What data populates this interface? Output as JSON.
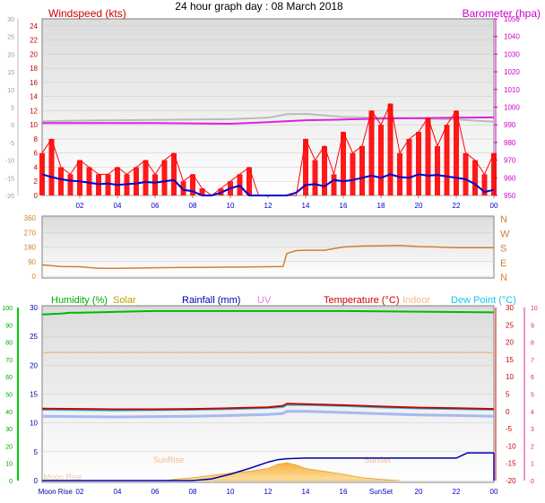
{
  "title": "24 hour graph day : 08 March 2018",
  "colors": {
    "wind": "#ff0000",
    "wind_avg": "#0000cc",
    "baro": "#e020e0",
    "baro_axis": "#cc00cc",
    "temp_gray": "#bbbbbb",
    "dir": "#d08030",
    "humidity": "#00bb00",
    "solar": "#b8a000",
    "rain": "#0000aa",
    "uv": "#e080e0",
    "temp": "#cc0000",
    "indoor": "#f0b890",
    "dew": "#10c8e8",
    "right_pink": "#e0208a"
  },
  "chart_data": [
    {
      "type": "line",
      "panel": "wind-baro",
      "left_axis_label": "Windspeed (kts)",
      "right_axis_label": "Barometer (hpa)",
      "outer_left_ticks": [
        "30",
        "25",
        "20",
        "15",
        "10",
        "5",
        "0",
        "-5",
        "-10",
        "-15",
        "-20"
      ],
      "left_ticks": [
        "24",
        "22",
        "20",
        "18",
        "16",
        "14",
        "12",
        "10",
        "8",
        "6",
        "4",
        "2",
        "0"
      ],
      "right_ticks": [
        "1050",
        "1040",
        "1030",
        "1020",
        "1010",
        "1000",
        "990",
        "980",
        "970",
        "960",
        "950"
      ],
      "x_ticks": [
        "02",
        "04",
        "06",
        "08",
        "10",
        "12",
        "14",
        "16",
        "18",
        "20",
        "22",
        "00"
      ],
      "series": [
        {
          "name": "Windspeed (kts)",
          "key": "gust",
          "x": [
            0,
            0.5,
            1,
            1.5,
            2,
            2.5,
            3,
            3.5,
            4,
            4.5,
            5,
            5.5,
            6,
            6.5,
            7,
            7.5,
            8,
            8.5,
            9,
            9.5,
            10,
            10.5,
            11,
            11.5,
            12,
            12.5,
            13,
            13.5,
            14,
            14.5,
            15,
            15.5,
            16,
            16.5,
            17,
            17.5,
            18,
            18.5,
            19,
            19.5,
            20,
            20.5,
            21,
            21.5,
            22,
            22.5,
            23,
            23.5,
            24
          ],
          "values": [
            6,
            8,
            4,
            3,
            5,
            4,
            3,
            3,
            4,
            3,
            4,
            5,
            3,
            5,
            6,
            2,
            3,
            1,
            0,
            1,
            2,
            3,
            4,
            0,
            0,
            0,
            0,
            0,
            8,
            5,
            7,
            3,
            9,
            6,
            7,
            12,
            10,
            13,
            6,
            8,
            9,
            11,
            7,
            10,
            12,
            6,
            5,
            3,
            6
          ]
        },
        {
          "name": "Windspeed average",
          "key": "avg",
          "x": [
            0,
            0.5,
            1,
            1.5,
            2,
            2.5,
            3,
            3.5,
            4,
            4.5,
            5,
            5.5,
            6,
            6.5,
            7,
            7.5,
            8,
            8.5,
            9,
            9.5,
            10,
            10.5,
            11,
            11.5,
            12,
            12.5,
            13,
            13.5,
            14,
            14.5,
            15,
            15.5,
            16,
            16.5,
            17,
            17.5,
            18,
            18.5,
            19,
            19.5,
            20,
            20.5,
            21,
            21.5,
            22,
            22.5,
            23,
            23.5,
            24
          ],
          "values": [
            3,
            2.6,
            2.3,
            2.1,
            2,
            1.8,
            1.6,
            1.7,
            1.5,
            1.6,
            1.7,
            1.9,
            1.8,
            2,
            2.2,
            0.8,
            0.6,
            0,
            0,
            0.4,
            1,
            1.4,
            0,
            0,
            0,
            0,
            0,
            0.4,
            1.5,
            1.6,
            1.3,
            2.2,
            2,
            2.2,
            2.5,
            2.8,
            2.5,
            3,
            2.6,
            2.5,
            3,
            2.8,
            2.9,
            2.7,
            2.5,
            2.3,
            1.6,
            0.5,
            0.8
          ]
        },
        {
          "name": "Barometer (hpa)",
          "key": "baro",
          "x": [
            0,
            2,
            4,
            6,
            8,
            10,
            12,
            14,
            16,
            18,
            20,
            22,
            24
          ],
          "values": [
            991,
            991,
            991,
            991,
            990.8,
            990.6,
            991.5,
            992.6,
            993,
            993.5,
            993.8,
            994,
            994.2
          ]
        },
        {
          "name": "Temperature trace",
          "key": "gray",
          "x": [
            0,
            2,
            4,
            6,
            8,
            10,
            12,
            13,
            14,
            16,
            18,
            20,
            22,
            24
          ],
          "values": [
            1,
            1.2,
            1.3,
            1.4,
            1.5,
            1.6,
            2,
            3,
            3.1,
            2.2,
            2,
            1.8,
            1.5,
            0.9
          ]
        }
      ]
    },
    {
      "type": "line",
      "panel": "direction",
      "left_ticks": [
        "360",
        "270",
        "180",
        "90",
        "0"
      ],
      "right_labels": [
        "N",
        "W",
        "S",
        "E",
        "N"
      ],
      "series": [
        {
          "name": "Wind direction",
          "key": "dir",
          "x": [
            0,
            1,
            2,
            3,
            4,
            5,
            6,
            7,
            8,
            9,
            10,
            11,
            12,
            12.8,
            13,
            13.5,
            14,
            15,
            16,
            17,
            18,
            19,
            20,
            21,
            22,
            23,
            24
          ],
          "values": [
            70,
            60,
            58,
            48,
            48,
            50,
            52,
            53,
            54,
            55,
            56,
            57,
            58,
            60,
            140,
            158,
            160,
            160,
            180,
            186,
            188,
            190,
            183,
            180,
            176,
            176,
            176
          ]
        }
      ]
    },
    {
      "type": "line",
      "panel": "multi",
      "legend": [
        "Humidity (%)",
        "Solar",
        "Rainfall (mm)",
        "UV",
        "Temperature (°C)",
        "Indoor",
        "Dew Point (°C)"
      ],
      "outer_left_ticks": [
        "100",
        "90",
        "80",
        "70",
        "60",
        "50",
        "40",
        "30",
        "20",
        "10",
        "0"
      ],
      "left_ticks": [
        "30",
        "25",
        "20",
        "15",
        "10",
        "5",
        "0"
      ],
      "right_ticks_1": [
        "30",
        "25",
        "20",
        "15",
        "10",
        "5",
        "0",
        "-5",
        "-10",
        "-15",
        "-20"
      ],
      "right_ticks_2": [
        "10",
        "9",
        "8",
        "7",
        "6",
        "5",
        "4",
        "3",
        "2",
        "1",
        "0"
      ],
      "x_ticks": [
        "Moon Rise",
        "02",
        "04",
        "06",
        "08",
        "10",
        "12",
        "14",
        "16",
        "SunSet",
        "20",
        "22",
        "00"
      ],
      "annotations": [
        "SunRise",
        "SunSet",
        "SunSet",
        "Moon Rise"
      ],
      "series": [
        {
          "name": "Humidity (%)",
          "key": "hum",
          "x": [
            0,
            1,
            1.5,
            2,
            4,
            6,
            8,
            10,
            12,
            14,
            16,
            18,
            20,
            22,
            24
          ],
          "values": [
            96,
            96.5,
            97,
            97,
            97.5,
            98,
            98,
            98,
            98,
            98,
            98,
            97.8,
            97.6,
            97.4,
            97.2
          ]
        },
        {
          "name": "Temperature (°C)",
          "key": "temp",
          "x": [
            0,
            2,
            4,
            6,
            8,
            10,
            12,
            12.8,
            13,
            14,
            16,
            18,
            20,
            22,
            24
          ],
          "values": [
            0.8,
            0.7,
            0.6,
            0.6,
            0.7,
            0.9,
            1.2,
            1.6,
            2.2,
            2.1,
            1.8,
            1.4,
            1.1,
            0.9,
            0.7
          ]
        },
        {
          "name": "Dew Point (°C)",
          "key": "dew",
          "x": [
            0,
            2,
            4,
            6,
            8,
            10,
            12,
            12.8,
            13,
            14,
            16,
            18,
            20,
            22,
            24
          ],
          "values": [
            0.4,
            0.3,
            0.2,
            0.3,
            0.4,
            0.6,
            0.9,
            1.2,
            1.8,
            1.8,
            1.5,
            1.1,
            0.8,
            0.6,
            0.4
          ]
        },
        {
          "name": "Indoor",
          "key": "indoor",
          "x": [
            0,
            24
          ],
          "values": [
            17,
            17
          ]
        },
        {
          "name": "Rainfall (mm)",
          "key": "rain",
          "x": [
            0,
            8,
            9,
            10,
            11,
            12,
            12.5,
            13,
            14,
            16,
            18,
            20,
            21,
            22,
            22.6,
            24
          ],
          "values": [
            0,
            0,
            0.3,
            1.1,
            2.1,
            3.2,
            3.6,
            3.8,
            3.9,
            3.9,
            3.9,
            3.9,
            3.9,
            3.9,
            4.8,
            4.8
          ]
        },
        {
          "name": "Solar",
          "key": "solar",
          "x": [
            6.5,
            7,
            8,
            9,
            10,
            11,
            12,
            12.5,
            13,
            13.5,
            14,
            15,
            16,
            17,
            18,
            19
          ],
          "values": [
            0,
            0.2,
            0.5,
            0.9,
            1.3,
            1.6,
            2.1,
            2.8,
            3.1,
            2.7,
            2.1,
            1.6,
            1.1,
            0.5,
            0.2,
            0
          ]
        }
      ]
    }
  ]
}
